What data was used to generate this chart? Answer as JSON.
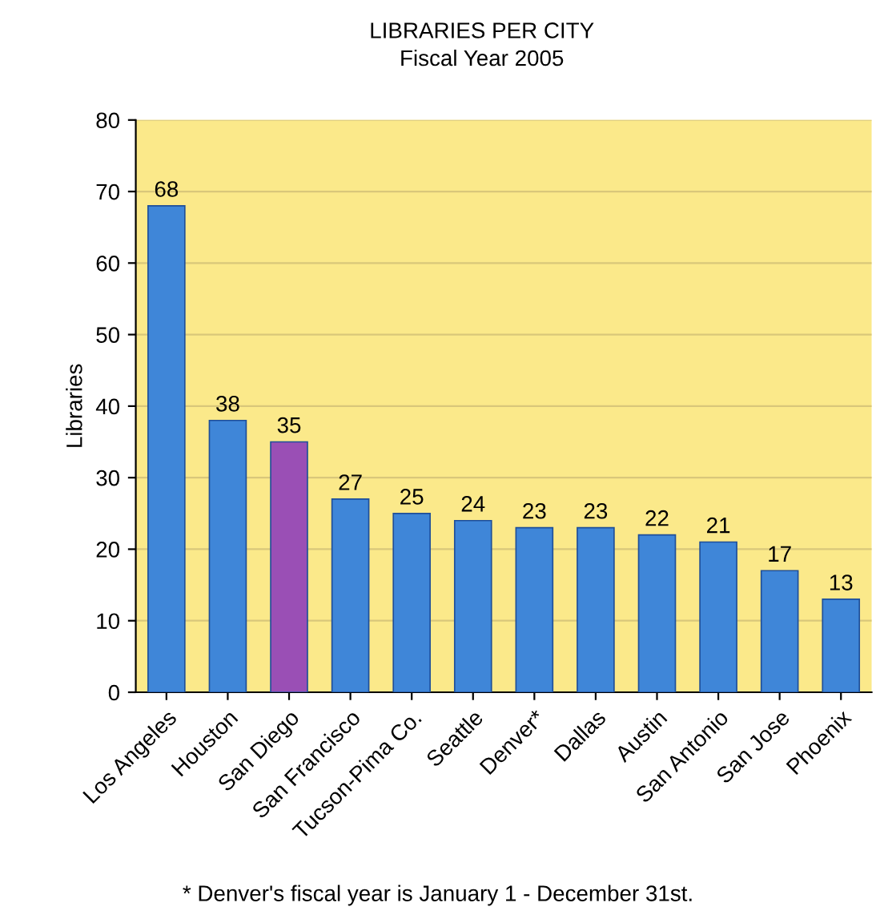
{
  "chart_data": {
    "type": "bar",
    "title": "LIBRARIES PER CITY",
    "subtitle": "Fiscal Year 2005",
    "ylabel": "Libraries",
    "categories": [
      "Los Angeles",
      "Houston",
      "San Diego",
      "San Francisco",
      "Tucson-Pima Co.",
      "Seattle",
      "Denver*",
      "Dallas",
      "Austin",
      "San Antonio",
      "San Jose",
      "Phoenix"
    ],
    "values": [
      68,
      38,
      35,
      27,
      25,
      24,
      23,
      23,
      22,
      21,
      17,
      13
    ],
    "colors": [
      "#3f86d8",
      "#3f86d8",
      "#9a4fb5",
      "#3f86d8",
      "#3f86d8",
      "#3f86d8",
      "#3f86d8",
      "#3f86d8",
      "#3f86d8",
      "#3f86d8",
      "#3f86d8",
      "#3f86d8"
    ],
    "ylim": [
      0,
      80
    ],
    "yticks": [
      0,
      10,
      20,
      30,
      40,
      50,
      60,
      70,
      80
    ],
    "grid": "y",
    "data_labels": true,
    "annotations": [
      "* Denver's fiscal year is January 1 - December 31st."
    ]
  }
}
